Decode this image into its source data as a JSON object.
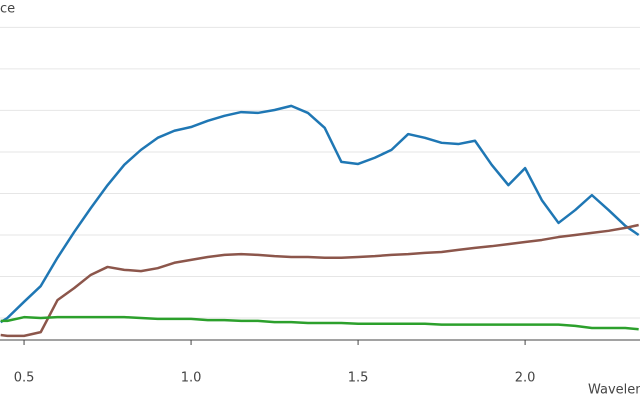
{
  "chart_data": {
    "type": "line",
    "y_label": "ce",
    "x_label": "Wavelen",
    "x": [
      0.43,
      0.45,
      0.5,
      0.55,
      0.6,
      0.65,
      0.7,
      0.75,
      0.8,
      0.85,
      0.9,
      0.95,
      1.0,
      1.05,
      1.1,
      1.15,
      1.2,
      1.25,
      1.3,
      1.35,
      1.4,
      1.45,
      1.5,
      1.55,
      1.6,
      1.65,
      1.7,
      1.75,
      1.8,
      1.85,
      1.9,
      1.95,
      2.0,
      2.05,
      2.1,
      2.15,
      2.2,
      2.25,
      2.3,
      2.34
    ],
    "series": [
      {
        "color": "#1f77b4",
        "values": [
          -0.01,
          0,
          0.039,
          0.077,
          0.145,
          0.207,
          0.265,
          0.32,
          0.369,
          0.405,
          0.434,
          0.451,
          0.46,
          0.475,
          0.487,
          0.496,
          0.494,
          0.501,
          0.511,
          0.494,
          0.458,
          0.376,
          0.371,
          0.386,
          0.405,
          0.443,
          0.434,
          0.422,
          0.419,
          0.427,
          0.369,
          0.32,
          0.361,
          0.284,
          0.229,
          0.26,
          0.296,
          0.26,
          0.222,
          0.2
        ]
      },
      {
        "color": "#8c564b",
        "values": [
          -0.041,
          -0.043,
          -0.043,
          -0.034,
          0.043,
          0.072,
          0.104,
          0.123,
          0.116,
          0.113,
          0.12,
          0.133,
          0.14,
          0.147,
          0.152,
          0.154,
          0.152,
          0.149,
          0.147,
          0.147,
          0.145,
          0.145,
          0.147,
          0.149,
          0.152,
          0.154,
          0.157,
          0.159,
          0.164,
          0.169,
          0.173,
          0.178,
          0.183,
          0.188,
          0.195,
          0.2,
          0.205,
          0.21,
          0.217,
          0.224
        ]
      },
      {
        "color": "#2ca02c",
        "values": [
          -0.007,
          -0.007,
          0.002,
          0.0,
          0.002,
          0.002,
          0.002,
          0.002,
          0.002,
          0.0,
          -0.002,
          -0.002,
          -0.002,
          -0.005,
          -0.005,
          -0.007,
          -0.007,
          -0.01,
          -0.01,
          -0.012,
          -0.012,
          -0.012,
          -0.014,
          -0.014,
          -0.014,
          -0.014,
          -0.014,
          -0.016,
          -0.016,
          -0.016,
          -0.016,
          -0.016,
          -0.016,
          -0.016,
          -0.016,
          -0.019,
          -0.024,
          -0.024,
          -0.024,
          -0.027
        ]
      }
    ],
    "xlim": [
      0.428,
      2.344
    ],
    "xticks": [
      {
        "value": 0.5,
        "label": "0.5"
      },
      {
        "value": 1,
        "label": "1.0"
      },
      1.5,
      {
        "value": 2,
        "label": "2.0"
      }
    ],
    "ylim": [
      -0.053,
      0.766
    ],
    "yticks": [
      0,
      0.1,
      0.2,
      0.3,
      0.4,
      0.5,
      0.6,
      0.7
    ],
    "grid": true
  }
}
